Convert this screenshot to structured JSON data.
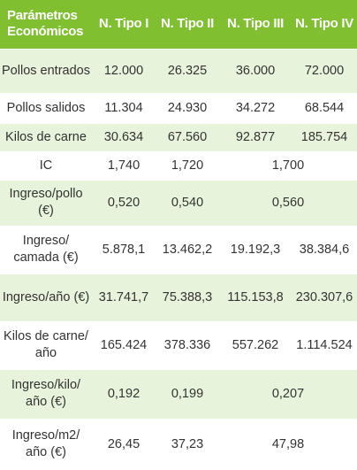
{
  "header": [
    "Parámetros Económicos",
    "N. Tipo I",
    "N. Tipo II",
    "N. Tipo III",
    "N. Tipo IV"
  ],
  "rows": [
    {
      "label": "Pollos entrados",
      "cells": [
        "12.000",
        "26.325",
        "36.000",
        "72.000"
      ]
    },
    {
      "label": "Pollos salidos",
      "cells": [
        "11.304",
        "24.930",
        "34.272",
        "68.544"
      ]
    },
    {
      "label": "Kilos de carne",
      "cells": [
        "30.634",
        "67.560",
        "92.877",
        "185.754"
      ]
    },
    {
      "label": "IC",
      "cells": [
        "1,740",
        "1,720",
        "1,700"
      ],
      "merged_last": true
    },
    {
      "label": "Ingreso/pollo (€)",
      "cells": [
        "0,520",
        "0,540",
        "0,560"
      ],
      "merged_last": true
    },
    {
      "label": "Ingreso/ camada (€)",
      "cells": [
        "5.878,1",
        "13.462,2",
        "19.192,3",
        "38.384,6"
      ]
    },
    {
      "label": "Ingreso/año (€)",
      "cells": [
        "31.741,7",
        "75.388,3",
        "115.153,8",
        "230.307,6"
      ]
    },
    {
      "label": "Kilos de carne/ año",
      "cells": [
        "165.424",
        "378.336",
        "557.262",
        "1.114.524"
      ]
    },
    {
      "label": "Ingreso/kilo/ año (€)",
      "cells": [
        "0,192",
        "0,199",
        "0,207"
      ],
      "merged_last": true
    },
    {
      "label": "Ingreso/m2/ año (€)",
      "cells": [
        "26,45",
        "37,23",
        "47,98"
      ],
      "merged_last": true
    }
  ]
}
